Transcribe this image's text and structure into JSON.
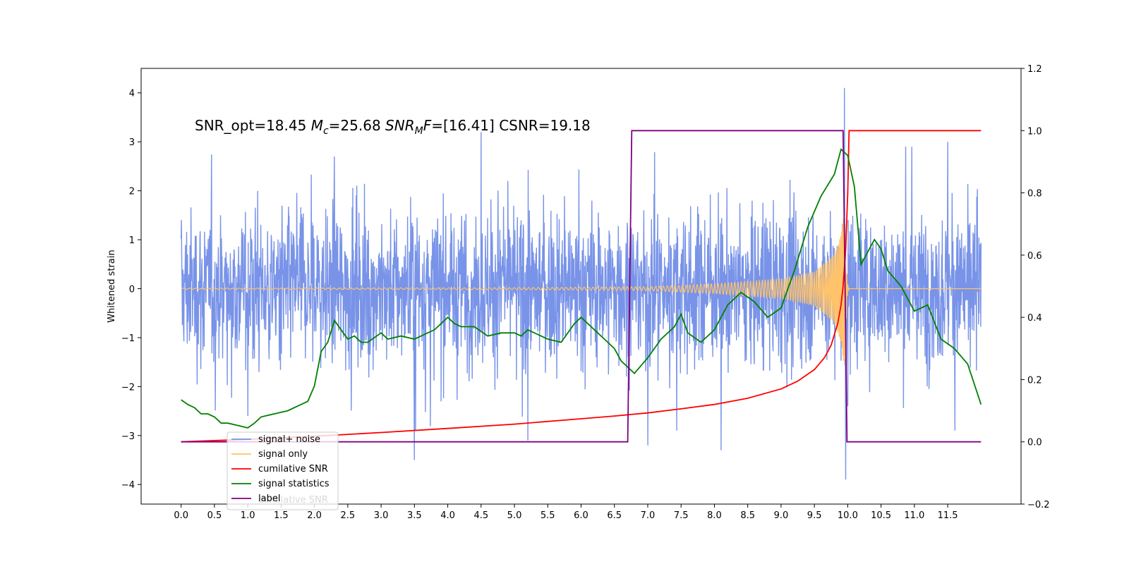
{
  "chart_data": {
    "type": "line",
    "title": {
      "prefix": "SNR_opt=18.45 ",
      "mc_symbol": "M",
      "mc_sub": "c",
      "mc_value": "=25.68  ",
      "snr_symbol": "SNR",
      "snr_sub": "M",
      "snr_f": "F",
      "snr_value": "=[16.41] CSNR=19.18"
    },
    "ylabel_left": "Whitened strain",
    "xlim": [
      -0.6,
      12.6
    ],
    "ylim_left": [
      -4.4,
      4.5
    ],
    "ylim_right": [
      -0.2,
      1.2
    ],
    "x_ticks": [
      0.0,
      0.5,
      1.0,
      1.5,
      2.0,
      2.5,
      3.0,
      3.5,
      4.0,
      4.5,
      5.0,
      5.5,
      6.0,
      6.5,
      7.0,
      7.5,
      8.0,
      8.5,
      9.0,
      9.5,
      10.0,
      10.5,
      11.0,
      11.5
    ],
    "x_tick_labels": [
      "0.0",
      "0.5",
      "1.0",
      "1.5",
      "2.0",
      "2.5",
      "3.0",
      "3.5",
      "4.0",
      "4.5",
      "5.0",
      "5.5",
      "6.0",
      "6.5",
      "7.0",
      "7.5",
      "8.0",
      "8.5",
      "9.0",
      "9.5",
      "10.0",
      "10.5",
      "11.0",
      "11.5"
    ],
    "y_left_ticks": [
      -4,
      -3,
      -2,
      -1,
      0,
      1,
      2,
      3,
      4
    ],
    "y_left_tick_labels": [
      "−4",
      "−3",
      "−2",
      "−1",
      "0",
      "1",
      "2",
      "3",
      "4"
    ],
    "y_right_ticks": [
      -0.2,
      0.0,
      0.2,
      0.4,
      0.6,
      0.8,
      1.0,
      1.2
    ],
    "y_right_tick_labels": [
      "−0.2",
      "0.0",
      "0.2",
      "0.4",
      "0.6",
      "0.8",
      "1.0",
      "1.2"
    ],
    "legend_position": "lower-left",
    "legend_hidden_text": "cumilative SNR",
    "series": [
      {
        "name": "signal+ noise",
        "axis": "left",
        "color": "#7893e8",
        "x_range": [
          0.0,
          12.0
        ],
        "approx_amplitude": 1.3,
        "spikes": [
          [
            1.0,
            -2.6
          ],
          [
            2.3,
            2.7
          ],
          [
            3.5,
            -3.5
          ],
          [
            4.5,
            3.2
          ],
          [
            5.2,
            -3.1
          ],
          [
            7.0,
            -3.2
          ],
          [
            8.1,
            -3.3
          ],
          [
            9.95,
            4.1
          ],
          [
            9.97,
            -3.9
          ],
          [
            10.0,
            -2.4
          ],
          [
            11.5,
            3.0
          ]
        ]
      },
      {
        "name": "signal only",
        "axis": "left",
        "color": "#ffc36b",
        "x_range": [
          0.0,
          12.0
        ],
        "merger_time": 9.97,
        "envelope": [
          [
            0.0,
            0.01
          ],
          [
            5.0,
            0.02
          ],
          [
            7.0,
            0.04
          ],
          [
            8.0,
            0.1
          ],
          [
            9.0,
            0.2
          ],
          [
            9.5,
            0.35
          ],
          [
            9.8,
            0.7
          ],
          [
            9.9,
            1.1
          ],
          [
            9.95,
            1.6
          ],
          [
            9.97,
            1.2
          ]
        ]
      },
      {
        "name": "cumilative SNR",
        "axis": "right",
        "color": "#ff0000",
        "points": [
          [
            0.0,
            0.0
          ],
          [
            1.0,
            0.008
          ],
          [
            2.0,
            0.018
          ],
          [
            3.0,
            0.03
          ],
          [
            4.0,
            0.043
          ],
          [
            5.0,
            0.057
          ],
          [
            6.0,
            0.074
          ],
          [
            6.5,
            0.083
          ],
          [
            7.0,
            0.093
          ],
          [
            7.5,
            0.106
          ],
          [
            8.0,
            0.12
          ],
          [
            8.5,
            0.14
          ],
          [
            9.0,
            0.17
          ],
          [
            9.25,
            0.195
          ],
          [
            9.5,
            0.232
          ],
          [
            9.65,
            0.27
          ],
          [
            9.75,
            0.31
          ],
          [
            9.85,
            0.38
          ],
          [
            9.9,
            0.44
          ],
          [
            9.93,
            0.5
          ],
          [
            9.95,
            0.56
          ],
          [
            9.97,
            0.62
          ],
          [
            10.0,
            0.8
          ],
          [
            10.02,
            1.0
          ],
          [
            12.0,
            1.0
          ]
        ]
      },
      {
        "name": "signal statistics",
        "axis": "right",
        "color": "#008000",
        "points": [
          [
            0.0,
            0.135
          ],
          [
            0.1,
            0.12
          ],
          [
            0.2,
            0.11
          ],
          [
            0.3,
            0.09
          ],
          [
            0.4,
            0.09
          ],
          [
            0.5,
            0.08
          ],
          [
            0.6,
            0.06
          ],
          [
            0.7,
            0.06
          ],
          [
            0.8,
            0.055
          ],
          [
            0.9,
            0.05
          ],
          [
            1.0,
            0.045
          ],
          [
            1.1,
            0.06
          ],
          [
            1.2,
            0.08
          ],
          [
            1.4,
            0.09
          ],
          [
            1.6,
            0.1
          ],
          [
            1.8,
            0.12
          ],
          [
            1.9,
            0.13
          ],
          [
            2.0,
            0.18
          ],
          [
            2.1,
            0.29
          ],
          [
            2.2,
            0.32
          ],
          [
            2.3,
            0.39
          ],
          [
            2.4,
            0.36
          ],
          [
            2.5,
            0.33
          ],
          [
            2.6,
            0.34
          ],
          [
            2.7,
            0.32
          ],
          [
            2.8,
            0.32
          ],
          [
            3.0,
            0.35
          ],
          [
            3.1,
            0.33
          ],
          [
            3.3,
            0.34
          ],
          [
            3.5,
            0.33
          ],
          [
            3.6,
            0.34
          ],
          [
            3.7,
            0.35
          ],
          [
            3.8,
            0.36
          ],
          [
            4.0,
            0.4
          ],
          [
            4.1,
            0.38
          ],
          [
            4.2,
            0.37
          ],
          [
            4.4,
            0.37
          ],
          [
            4.6,
            0.34
          ],
          [
            4.8,
            0.35
          ],
          [
            5.0,
            0.35
          ],
          [
            5.1,
            0.34
          ],
          [
            5.2,
            0.36
          ],
          [
            5.3,
            0.35
          ],
          [
            5.5,
            0.33
          ],
          [
            5.7,
            0.32
          ],
          [
            5.9,
            0.38
          ],
          [
            6.0,
            0.4
          ],
          [
            6.2,
            0.36
          ],
          [
            6.4,
            0.32
          ],
          [
            6.5,
            0.3
          ],
          [
            6.6,
            0.26
          ],
          [
            6.8,
            0.22
          ],
          [
            7.0,
            0.27
          ],
          [
            7.2,
            0.33
          ],
          [
            7.4,
            0.37
          ],
          [
            7.5,
            0.41
          ],
          [
            7.6,
            0.35
          ],
          [
            7.8,
            0.32
          ],
          [
            8.0,
            0.36
          ],
          [
            8.2,
            0.44
          ],
          [
            8.4,
            0.48
          ],
          [
            8.6,
            0.45
          ],
          [
            8.8,
            0.4
          ],
          [
            9.0,
            0.43
          ],
          [
            9.2,
            0.55
          ],
          [
            9.4,
            0.69
          ],
          [
            9.6,
            0.79
          ],
          [
            9.8,
            0.86
          ],
          [
            9.9,
            0.94
          ],
          [
            10.0,
            0.92
          ],
          [
            10.1,
            0.82
          ],
          [
            10.2,
            0.57
          ],
          [
            10.3,
            0.61
          ],
          [
            10.4,
            0.65
          ],
          [
            10.5,
            0.62
          ],
          [
            10.6,
            0.55
          ],
          [
            10.8,
            0.5
          ],
          [
            11.0,
            0.42
          ],
          [
            11.2,
            0.44
          ],
          [
            11.4,
            0.33
          ],
          [
            11.6,
            0.3
          ],
          [
            11.8,
            0.25
          ],
          [
            12.0,
            0.12
          ]
        ]
      },
      {
        "name": "label",
        "axis": "right",
        "color": "#800080",
        "points": [
          [
            0.0,
            0.0
          ],
          [
            6.7,
            0.0
          ],
          [
            6.76,
            1.0
          ],
          [
            9.93,
            1.0
          ],
          [
            9.99,
            0.0
          ],
          [
            12.0,
            0.0
          ]
        ]
      }
    ]
  }
}
